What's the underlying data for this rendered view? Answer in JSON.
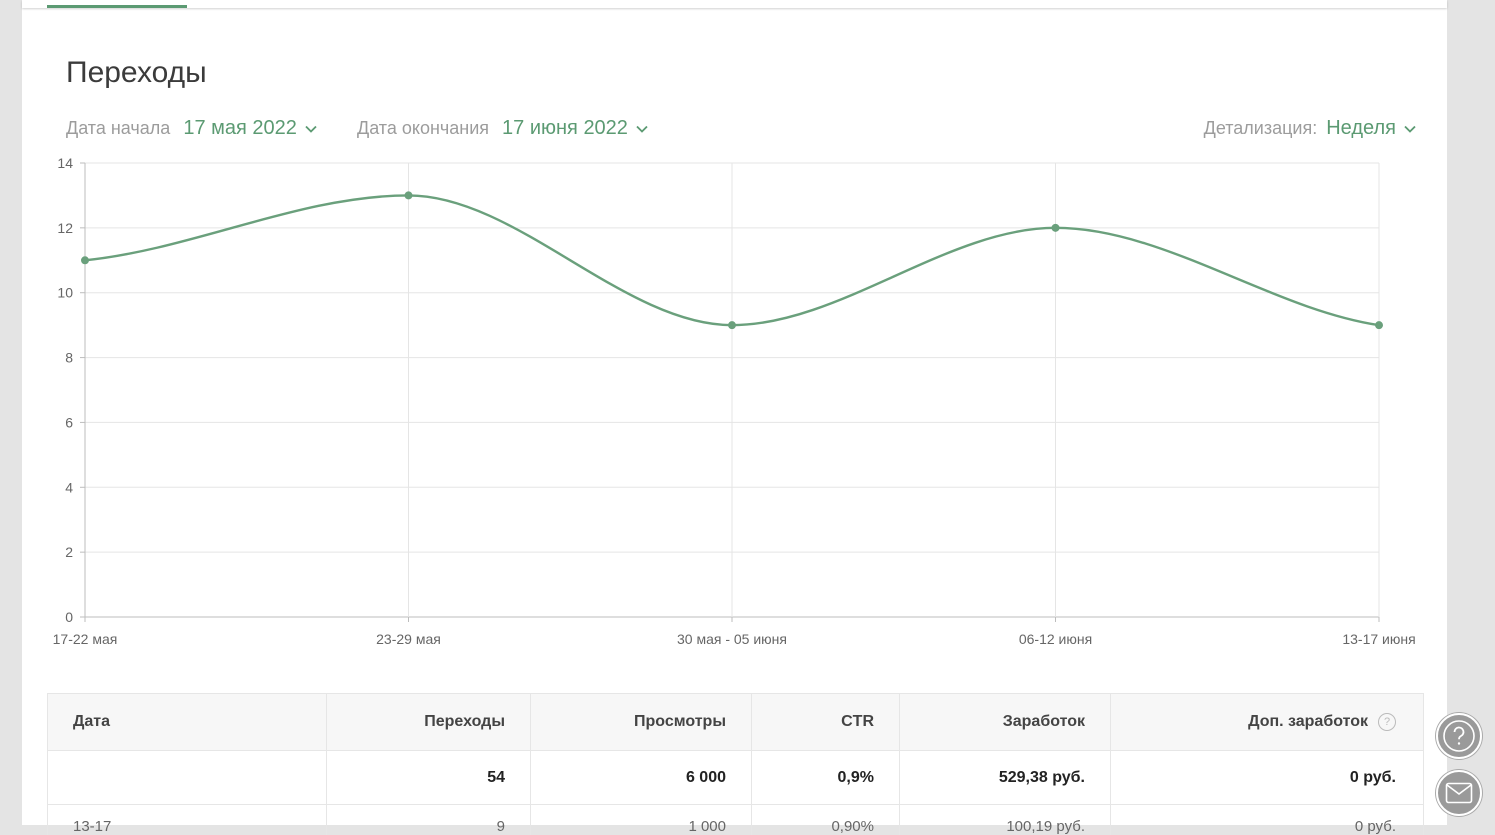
{
  "page": {
    "title": "Переходы"
  },
  "filters": {
    "start_label": "Дата начала",
    "start_value": "17 мая 2022",
    "end_label": "Дата окончания",
    "end_value": "17 июня 2022",
    "detail_label": "Детализация:",
    "detail_value": "Неделя"
  },
  "chart_data": {
    "type": "line",
    "categories": [
      "17-22 мая",
      "23-29 мая",
      "30 мая - 05 июня",
      "06-12 июня",
      "13-17 июня"
    ],
    "series": [
      {
        "values": [
          11,
          13,
          9,
          12,
          9
        ]
      }
    ],
    "ylim": [
      0,
      14
    ],
    "yticks": [
      0,
      2,
      4,
      6,
      8,
      10,
      12,
      14
    ],
    "grid": true,
    "color": "#6aa07c"
  },
  "table": {
    "headers": [
      "Дата",
      "Переходы",
      "Просмотры",
      "CTR",
      "Заработок",
      "Доп. заработок"
    ],
    "help_icon": "?",
    "total_row": [
      "",
      "54",
      "6 000",
      "0,9%",
      "529,38 руб.",
      "0 руб."
    ],
    "partial_row": [
      "13-17",
      "9",
      "1 000",
      "0,90%",
      "100,19 руб.",
      "0 руб."
    ]
  },
  "floating": {
    "help_icon": "question-circle-icon",
    "mail_icon": "envelope-icon"
  }
}
